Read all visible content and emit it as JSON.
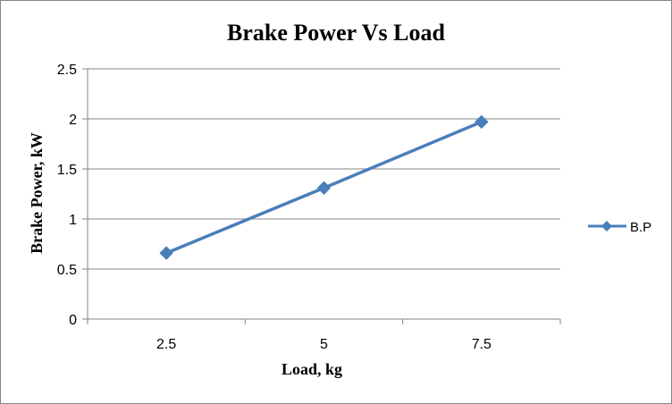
{
  "chart_data": {
    "type": "line",
    "title": "Brake Power Vs Load",
    "xlabel": "Load, kg",
    "ylabel": "Brake Power, kW",
    "categories": [
      "2.5",
      "5",
      "7.5"
    ],
    "series": [
      {
        "name": "B.P",
        "values": [
          0.66,
          1.31,
          1.97
        ],
        "color": "#4a7ebb"
      }
    ],
    "ylim": [
      0,
      2.5
    ],
    "yticks": [
      "0",
      "0.5",
      "1",
      "1.5",
      "2",
      "2.5"
    ],
    "ytick_values": [
      0,
      0.5,
      1,
      1.5,
      2,
      2.5
    ],
    "grid": "horizontal",
    "legend_position": "right",
    "marker": "diamond"
  }
}
